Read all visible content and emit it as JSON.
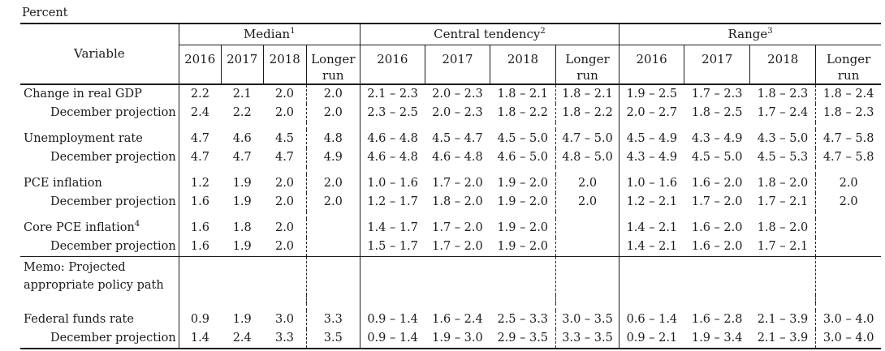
{
  "units_label": "Percent",
  "table": {
    "variable_header": "Variable",
    "groups": [
      {
        "label": "Median",
        "sup": "1"
      },
      {
        "label": "Central tendency",
        "sup": "2"
      },
      {
        "label": "Range",
        "sup": "3"
      }
    ],
    "year_headers": [
      "2016",
      "2017",
      "2018",
      "Longer run"
    ],
    "rows": [
      {
        "type": "data",
        "label": "Change in real GDP",
        "sup": "",
        "indent": false,
        "gap_before": false,
        "rule_before": false,
        "median": [
          "2.2",
          "2.1",
          "2.0",
          "2.0"
        ],
        "central": [
          "2.1 – 2.3",
          "2.0 – 2.3",
          "1.8 – 2.1",
          "1.8 – 2.1"
        ],
        "range": [
          "1.9 – 2.5",
          "1.7 – 2.3",
          "1.8 – 2.3",
          "1.8 – 2.4"
        ]
      },
      {
        "type": "data",
        "label": "December projection",
        "sup": "",
        "indent": true,
        "gap_before": false,
        "rule_before": false,
        "median": [
          "2.4",
          "2.2",
          "2.0",
          "2.0"
        ],
        "central": [
          "2.3 – 2.5",
          "2.0 – 2.3",
          "1.8 – 2.2",
          "1.8 – 2.2"
        ],
        "range": [
          "2.0 – 2.7",
          "1.8 – 2.5",
          "1.7 – 2.4",
          "1.8 – 2.3"
        ]
      },
      {
        "type": "data",
        "label": "Unemployment rate",
        "sup": "",
        "indent": false,
        "gap_before": true,
        "rule_before": false,
        "median": [
          "4.7",
          "4.6",
          "4.5",
          "4.8"
        ],
        "central": [
          "4.6 – 4.8",
          "4.5 – 4.7",
          "4.5 – 5.0",
          "4.7 – 5.0"
        ],
        "range": [
          "4.5 – 4.9",
          "4.3 – 4.9",
          "4.3 – 5.0",
          "4.7 – 5.8"
        ]
      },
      {
        "type": "data",
        "label": "December projection",
        "sup": "",
        "indent": true,
        "gap_before": false,
        "rule_before": false,
        "median": [
          "4.7",
          "4.7",
          "4.7",
          "4.9"
        ],
        "central": [
          "4.6 – 4.8",
          "4.6 – 4.8",
          "4.6 – 5.0",
          "4.8 – 5.0"
        ],
        "range": [
          "4.3 – 4.9",
          "4.5 – 5.0",
          "4.5 – 5.3",
          "4.7 – 5.8"
        ]
      },
      {
        "type": "data",
        "label": "PCE inflation",
        "sup": "",
        "indent": false,
        "gap_before": true,
        "rule_before": false,
        "median": [
          "1.2",
          "1.9",
          "2.0",
          "2.0"
        ],
        "central": [
          "1.0 – 1.6",
          "1.7 – 2.0",
          "1.9 – 2.0",
          "2.0"
        ],
        "range": [
          "1.0 – 1.6",
          "1.6 – 2.0",
          "1.8 – 2.0",
          "2.0"
        ]
      },
      {
        "type": "data",
        "label": "December projection",
        "sup": "",
        "indent": true,
        "gap_before": false,
        "rule_before": false,
        "median": [
          "1.6",
          "1.9",
          "2.0",
          "2.0"
        ],
        "central": [
          "1.2 – 1.7",
          "1.8 – 2.0",
          "1.9 – 2.0",
          "2.0"
        ],
        "range": [
          "1.2 – 2.1",
          "1.7 – 2.0",
          "1.7 – 2.1",
          "2.0"
        ]
      },
      {
        "type": "data",
        "label": "Core PCE inflation",
        "sup": "4",
        "indent": false,
        "gap_before": true,
        "rule_before": false,
        "median": [
          "1.6",
          "1.8",
          "2.0",
          ""
        ],
        "central": [
          "1.4 – 1.7",
          "1.7 – 2.0",
          "1.9 – 2.0",
          ""
        ],
        "range": [
          "1.4 – 2.1",
          "1.6 – 2.0",
          "1.8 – 2.0",
          ""
        ]
      },
      {
        "type": "data",
        "label": "December projection",
        "sup": "",
        "indent": true,
        "gap_before": false,
        "rule_before": false,
        "median": [
          "1.6",
          "1.9",
          "2.0",
          ""
        ],
        "central": [
          "1.5 – 1.7",
          "1.7 – 2.0",
          "1.9 – 2.0",
          ""
        ],
        "range": [
          "1.4 – 2.1",
          "1.6 – 2.0",
          "1.7 – 2.1",
          ""
        ]
      },
      {
        "type": "memo",
        "label_lines": [
          "Memo: Projected",
          "appropriate policy path"
        ],
        "sup": "",
        "indent": false,
        "gap_before": false,
        "rule_before": true,
        "median": [
          "",
          "",
          "",
          ""
        ],
        "central": [
          "",
          "",
          "",
          ""
        ],
        "range": [
          "",
          "",
          "",
          ""
        ]
      },
      {
        "type": "data",
        "label": "Federal funds rate",
        "sup": "",
        "indent": false,
        "gap_before": true,
        "rule_before": false,
        "median": [
          "0.9",
          "1.9",
          "3.0",
          "3.3"
        ],
        "central": [
          "0.9 – 1.4",
          "1.6 – 2.4",
          "2.5 – 3.3",
          "3.0 – 3.5"
        ],
        "range": [
          "0.6 – 1.4",
          "1.6 – 2.8",
          "2.1 – 3.9",
          "3.0 – 4.0"
        ]
      },
      {
        "type": "data",
        "label": "December projection",
        "sup": "",
        "indent": true,
        "gap_before": false,
        "rule_before": false,
        "median": [
          "1.4",
          "2.4",
          "3.3",
          "3.5"
        ],
        "central": [
          "0.9 – 1.4",
          "1.9 – 3.0",
          "2.9 – 3.5",
          "3.3 – 3.5"
        ],
        "range": [
          "0.9 – 2.1",
          "1.9 – 3.4",
          "2.1 – 3.9",
          "3.0 – 4.0"
        ]
      }
    ]
  }
}
